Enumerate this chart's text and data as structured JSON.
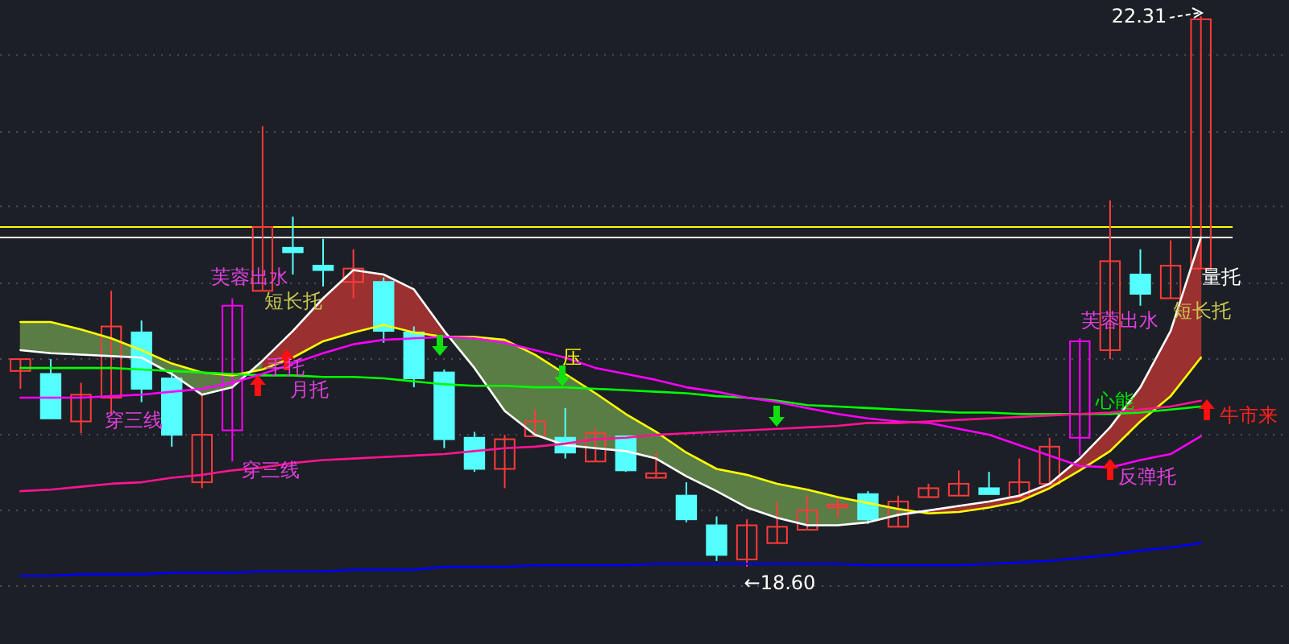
{
  "chart_data": {
    "type": "candlestick",
    "categories": [
      null,
      null,
      null,
      null,
      null,
      null,
      null,
      null,
      null,
      null,
      null,
      null,
      null,
      null,
      null,
      null,
      null,
      null,
      null,
      null,
      null,
      null,
      null,
      null,
      null,
      null,
      null,
      null,
      null,
      null,
      null,
      null,
      null,
      null,
      null,
      null,
      null,
      null,
      null,
      null
    ],
    "ohlc": [
      [
        19.92,
        20.0,
        19.8,
        20.0
      ],
      [
        19.9,
        20.0,
        19.6,
        19.6
      ],
      [
        19.58,
        19.84,
        19.5,
        19.76
      ],
      [
        19.74,
        20.46,
        19.63,
        20.22
      ],
      [
        20.18,
        20.26,
        19.71,
        19.8
      ],
      [
        19.87,
        19.92,
        19.41,
        19.49
      ],
      [
        19.17,
        19.77,
        19.13,
        19.49
      ],
      [
        19.52,
        20.41,
        19.31,
        20.36
      ],
      [
        20.46,
        21.57,
        20.46,
        20.89
      ],
      [
        20.75,
        20.96,
        20.57,
        20.72
      ],
      [
        20.63,
        20.81,
        20.49,
        20.6
      ],
      [
        20.52,
        20.74,
        20.41,
        20.61
      ],
      [
        20.52,
        20.55,
        20.11,
        20.19
      ],
      [
        20.18,
        20.22,
        19.81,
        19.87
      ],
      [
        19.91,
        19.93,
        19.4,
        19.46
      ],
      [
        19.47,
        19.51,
        19.24,
        19.26
      ],
      [
        19.26,
        19.49,
        19.13,
        19.46
      ],
      [
        19.48,
        19.66,
        19.48,
        19.58
      ],
      [
        19.47,
        19.67,
        19.33,
        19.37
      ],
      [
        19.31,
        19.53,
        19.31,
        19.5
      ],
      [
        19.48,
        19.48,
        19.24,
        19.25
      ],
      [
        19.2,
        19.37,
        19.2,
        19.23
      ],
      [
        19.08,
        19.17,
        18.9,
        18.92
      ],
      [
        18.88,
        18.94,
        18.64,
        18.68
      ],
      [
        18.65,
        18.92,
        18.6,
        18.88
      ],
      [
        18.76,
        19.04,
        18.76,
        18.87
      ],
      [
        18.85,
        19.08,
        18.85,
        18.98
      ],
      [
        19.0,
        19.06,
        18.93,
        19.02
      ],
      [
        19.09,
        19.11,
        18.89,
        18.92
      ],
      [
        18.87,
        19.08,
        18.87,
        19.04
      ],
      [
        19.07,
        19.16,
        19.07,
        19.13
      ],
      [
        19.08,
        19.25,
        19.08,
        19.16
      ],
      [
        19.13,
        19.24,
        19.09,
        19.09
      ],
      [
        19.07,
        19.33,
        19.07,
        19.17
      ],
      [
        19.16,
        19.47,
        19.16,
        19.41
      ],
      [
        19.47,
        20.14,
        19.35,
        20.12
      ],
      [
        20.06,
        21.07,
        20.0,
        20.66
      ],
      [
        20.57,
        20.74,
        20.36,
        20.44
      ],
      [
        20.41,
        20.8,
        20.41,
        20.63
      ],
      [
        20.61,
        22.31,
        20.61,
        22.29
      ]
    ],
    "colors": [
      "#ff3b3b",
      "#54ffff",
      "#ff3b3b",
      "#ff3b3b",
      "#54ffff",
      "#54ffff",
      "#ff3b3b",
      "#ff00ff",
      "#ff3b3b",
      "#54ffff",
      "#54ffff",
      "#ff3b3b",
      "#54ffff",
      "#54ffff",
      "#54ffff",
      "#54ffff",
      "#ff3b3b",
      "#ff3b3b",
      "#54ffff",
      "#ff3b3b",
      "#54ffff",
      "#ff3b3b",
      "#54ffff",
      "#54ffff",
      "#ff3b3b",
      "#ff3b3b",
      "#ff3b3b",
      "#ff3b3b",
      "#54ffff",
      "#ff3b3b",
      "#ff3b3b",
      "#ff3b3b",
      "#54ffff",
      "#ff3b3b",
      "#ff3b3b",
      "#ff00ff",
      "#ff3b3b",
      "#54ffff",
      "#ff3b3b",
      "#ff3b3b"
    ],
    "series": [
      {
        "type": "line",
        "color": "#ffff00",
        "values": [
          20.25,
          20.25,
          20.2,
          20.14,
          20.06,
          19.97,
          19.91,
          19.89,
          19.93,
          20.01,
          20.12,
          20.18,
          20.23,
          20.18,
          20.15,
          20.15,
          20.13,
          20.03,
          19.9,
          19.77,
          19.63,
          19.51,
          19.37,
          19.26,
          19.22,
          19.16,
          19.12,
          19.07,
          19.03,
          18.99,
          18.96,
          18.97,
          19.0,
          19.04,
          19.13,
          19.25,
          19.38,
          19.58,
          19.75,
          20.01
        ],
        "upper": [
          20.25,
          20.25,
          20.2,
          20.14,
          20.06,
          19.97,
          19.91,
          19.89,
          19.93,
          null,
          null,
          null,
          null,
          null,
          20.15,
          20.15,
          20.13,
          20.03,
          19.9,
          19.77,
          19.63,
          19.51,
          19.37,
          19.26,
          19.22,
          19.16,
          19.12,
          19.07,
          19.03,
          18.99,
          18.96,
          null,
          null,
          null,
          null,
          null,
          null,
          null,
          null,
          null
        ],
        "lower": [
          20.06,
          20.04,
          20.03,
          20.02,
          20.01,
          19.9,
          19.76,
          19.81,
          19.99,
          null,
          null,
          null,
          null,
          null,
          20.19,
          19.94,
          19.65,
          19.49,
          19.42,
          19.4,
          19.38,
          19.33,
          19.21,
          19.11,
          19.0,
          18.93,
          18.88,
          18.88,
          18.9,
          18.95,
          18.98,
          null,
          null,
          null,
          null,
          null,
          null,
          null,
          null,
          null
        ]
      },
      {
        "type": "line",
        "color": "#ffffff",
        "values": [
          20.06,
          20.04,
          20.03,
          20.02,
          20.01,
          19.9,
          19.76,
          19.81,
          19.99,
          20.19,
          20.41,
          20.6,
          20.57,
          20.47,
          20.19,
          19.94,
          19.65,
          19.49,
          19.42,
          19.4,
          19.38,
          19.33,
          19.21,
          19.11,
          19.0,
          18.93,
          18.88,
          18.88,
          18.9,
          18.95,
          18.98,
          19.01,
          19.04,
          19.08,
          19.16,
          19.33,
          19.54,
          19.81,
          20.19,
          20.82
        ],
        "lower": [
          null,
          null,
          null,
          null,
          null,
          null,
          null,
          null,
          19.93,
          20.01,
          20.12,
          20.18,
          20.23,
          20.18,
          20.15,
          null,
          null,
          null,
          null,
          null,
          null,
          null,
          null,
          null,
          null,
          null,
          null,
          null,
          null,
          null,
          18.96,
          18.97,
          19.0,
          19.04,
          19.13,
          19.25,
          19.38,
          19.58,
          19.75,
          20.01
        ],
        "upper": [
          null,
          null,
          null,
          null,
          null,
          null,
          null,
          null,
          19.99,
          20.19,
          20.41,
          20.6,
          20.57,
          20.47,
          20.19,
          null,
          null,
          null,
          null,
          null,
          null,
          null,
          null,
          null,
          null,
          null,
          null,
          null,
          null,
          null,
          18.98,
          19.01,
          19.04,
          19.08,
          19.16,
          19.33,
          19.54,
          19.81,
          20.19,
          20.82
        ]
      },
      {
        "type": "line",
        "color": "#00ff00",
        "values": [
          19.94,
          19.94,
          19.94,
          19.94,
          19.93,
          19.92,
          19.91,
          19.9,
          19.89,
          19.89,
          19.88,
          19.88,
          19.87,
          19.85,
          19.83,
          19.82,
          19.82,
          19.81,
          19.81,
          19.8,
          19.79,
          19.78,
          19.77,
          19.75,
          19.74,
          19.72,
          19.69,
          19.68,
          19.67,
          19.66,
          19.65,
          19.64,
          19.64,
          19.63,
          19.63,
          19.63,
          19.63,
          19.64,
          19.66,
          19.68
        ]
      },
      {
        "type": "line",
        "color": "#ff00ff",
        "values": [
          19.74,
          19.74,
          19.74,
          19.75,
          19.76,
          19.78,
          19.8,
          19.84,
          19.9,
          19.97,
          20.04,
          20.1,
          20.13,
          20.14,
          20.15,
          20.14,
          20.11,
          20.06,
          20.01,
          19.94,
          19.9,
          19.86,
          19.81,
          19.78,
          19.74,
          19.71,
          19.67,
          19.63,
          19.6,
          19.58,
          19.57,
          19.53,
          19.49,
          19.42,
          19.35,
          19.28,
          19.27,
          19.32,
          19.36,
          19.48
        ]
      },
      {
        "type": "line",
        "color": "#ff1493",
        "values": [
          19.11,
          19.12,
          19.14,
          19.16,
          19.17,
          19.2,
          19.22,
          19.25,
          19.27,
          19.3,
          19.32,
          19.33,
          19.34,
          19.35,
          19.36,
          19.38,
          19.4,
          19.41,
          19.43,
          19.46,
          19.47,
          19.49,
          19.5,
          19.51,
          19.52,
          19.53,
          19.54,
          19.55,
          19.57,
          19.57,
          19.58,
          19.59,
          19.6,
          19.61,
          19.62,
          19.63,
          19.64,
          19.66,
          19.68,
          19.72
        ]
      },
      {
        "type": "line",
        "color": "#0000ff",
        "values": [
          18.54,
          18.54,
          18.55,
          18.55,
          18.55,
          18.56,
          18.56,
          18.56,
          18.57,
          18.57,
          18.57,
          18.58,
          18.58,
          18.58,
          18.6,
          18.6,
          18.6,
          18.61,
          18.61,
          18.61,
          18.61,
          18.62,
          18.62,
          18.62,
          18.62,
          18.62,
          18.62,
          18.62,
          18.61,
          18.61,
          18.61,
          18.61,
          18.62,
          18.63,
          18.64,
          18.66,
          18.68,
          18.71,
          18.73,
          18.76
        ]
      }
    ],
    "ylim": [
      18.08,
      22.42
    ],
    "yticks": [
      {
        "value": 18.47,
        "label": null
      },
      {
        "value": 18.98,
        "label": null
      },
      {
        "value": 19.49,
        "label": null
      },
      {
        "value": 20.0,
        "label": null
      },
      {
        "value": 20.51,
        "label": null
      },
      {
        "value": 21.03,
        "label": null
      },
      {
        "value": 21.53,
        "label": null
      },
      {
        "value": 22.05,
        "label": null
      }
    ],
    "grid": "y",
    "ref_lines": [
      {
        "axis": "y",
        "value": 20.89,
        "color": "#ffff00"
      },
      {
        "axis": "y",
        "value": 20.82,
        "color": "#ffffff"
      }
    ],
    "annotations": [
      "芙蓉出水",
      "短长托",
      "穿三线",
      "穿三线",
      "手托",
      "月托",
      "压",
      "芙蓉出水",
      "短长托",
      "量托",
      "心能",
      "牛市来",
      "反弹托",
      "22.31",
      "←18.60"
    ]
  }
}
